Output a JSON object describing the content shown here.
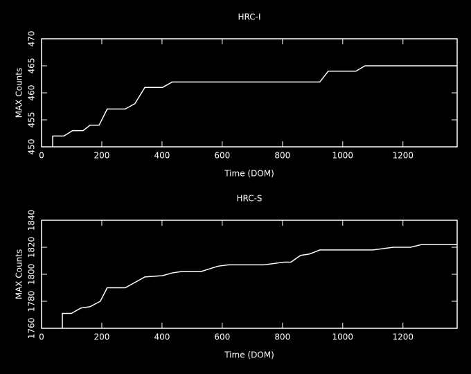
{
  "chart_data": [
    {
      "type": "line",
      "title": "HRC-I",
      "x_label": "Time (DOM)",
      "y_label": "MAX Counts",
      "xlim": [
        0,
        1380
      ],
      "xticks": [
        0,
        200,
        400,
        600,
        800,
        1000,
        1200
      ],
      "ylim": [
        450,
        470
      ],
      "yticks": [
        450,
        455,
        460,
        465,
        470
      ],
      "x": [
        37,
        37,
        74,
        103,
        138,
        161,
        191,
        218,
        278,
        310,
        343,
        402,
        434,
        924,
        952,
        1044,
        1074,
        1379
      ],
      "series": [
        {
          "color": "#ffffff",
          "values": [
            450,
            452,
            452,
            453,
            453,
            454,
            454,
            457,
            457,
            458,
            461,
            461,
            462,
            462,
            464,
            464,
            465,
            465
          ]
        }
      ]
    },
    {
      "type": "line",
      "title": "HRC-S",
      "x_label": "Time (DOM)",
      "y_label": "MAX Counts",
      "xlim": [
        0,
        1380
      ],
      "xticks": [
        0,
        200,
        400,
        600,
        800,
        1000,
        1200
      ],
      "ylim": [
        1760,
        1840
      ],
      "yticks": [
        1760,
        1780,
        1800,
        1820,
        1840
      ],
      "x": [
        69,
        69,
        99,
        131,
        161,
        195,
        218,
        278,
        343,
        402,
        434,
        464,
        529,
        586,
        621,
        740,
        805,
        828,
        860,
        890,
        924,
        1101,
        1168,
        1225,
        1262,
        1379
      ],
      "series": [
        {
          "color": "#ffffff",
          "values": [
            1760,
            1771,
            1771,
            1775,
            1776,
            1780,
            1790,
            1790,
            1798,
            1799,
            1801,
            1802,
            1802,
            1806,
            1807,
            1807,
            1809,
            1809,
            1814,
            1815,
            1818,
            1818,
            1820,
            1820,
            1822,
            1822
          ]
        }
      ]
    }
  ]
}
